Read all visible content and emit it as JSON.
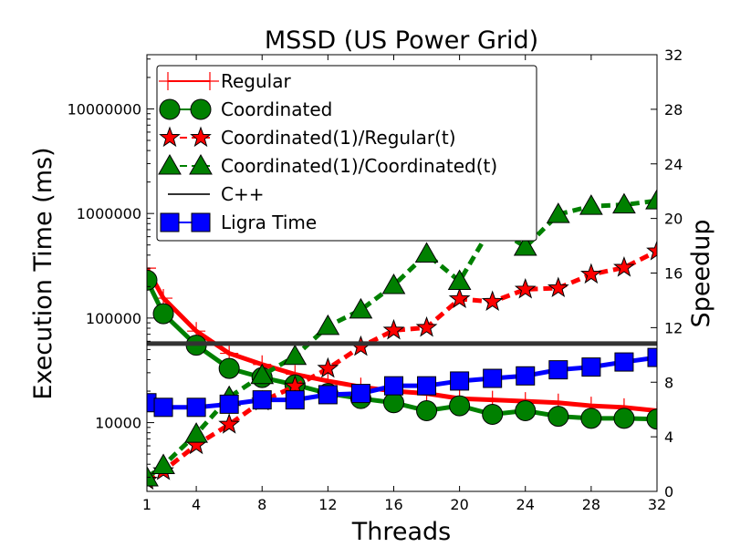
{
  "chart_data": {
    "type": "line",
    "title": "MSSD (US Power Grid)",
    "xlabel": "Threads",
    "ylabel_left": "Execution Time (ms)",
    "ylabel_right": "Speedup",
    "x_ticks": [
      1,
      4,
      8,
      12,
      16,
      20,
      24,
      28,
      32
    ],
    "x_range": [
      1,
      32
    ],
    "y_left_scale": "log",
    "y_left_range": [
      2200,
      33000000
    ],
    "y_left_ticks": [
      10000,
      100000,
      1000000,
      10000000
    ],
    "y_left_tick_labels": [
      "10000",
      "100000",
      "1000000",
      "10000000"
    ],
    "y_right_range": [
      0,
      32
    ],
    "y_right_ticks": [
      0,
      4,
      8,
      12,
      16,
      20,
      24,
      28,
      32
    ],
    "legend_position": "top-left",
    "series": [
      {
        "name": "Regular",
        "axis": "left",
        "color": "#ff0000",
        "marker": "plus",
        "dash": "solid",
        "x": [
          1,
          2,
          4,
          6,
          8,
          10,
          12,
          14,
          16,
          18,
          20,
          22,
          24,
          26,
          28,
          30,
          32
        ],
        "y": [
          300000,
          155000,
          75000,
          46000,
          36000,
          29000,
          25000,
          22000,
          20000,
          19000,
          17000,
          16500,
          16000,
          15500,
          14500,
          14000,
          13000
        ]
      },
      {
        "name": "Coordinated",
        "axis": "left",
        "color": "#008000",
        "marker": "circle",
        "dash": "solid",
        "x": [
          1,
          2,
          4,
          6,
          8,
          10,
          12,
          14,
          16,
          18,
          20,
          22,
          24,
          26,
          28,
          30,
          32
        ],
        "y": [
          230000,
          110000,
          55000,
          33000,
          27000,
          23000,
          19000,
          17000,
          15500,
          13000,
          14500,
          12000,
          13000,
          11500,
          11000,
          11000,
          10800
        ]
      },
      {
        "name": "Coordinated(1)/Regular(t)",
        "axis": "right",
        "color": "#ff0000",
        "marker": "star",
        "dash": "dashed",
        "x": [
          1,
          2,
          4,
          6,
          8,
          10,
          12,
          14,
          16,
          18,
          20,
          22,
          24,
          26,
          28,
          30,
          32
        ],
        "y": [
          0.8,
          1.5,
          3.4,
          4.9,
          6.6,
          7.7,
          9.0,
          10.6,
          11.8,
          12.0,
          14.1,
          13.9,
          14.8,
          14.9,
          15.9,
          16.4,
          17.6
        ]
      },
      {
        "name": "Coordinated(1)/Coordinated(t)",
        "axis": "right",
        "color": "#008000",
        "marker": "triangle",
        "dash": "dashed",
        "x": [
          1,
          2,
          4,
          6,
          8,
          10,
          12,
          14,
          16,
          18,
          20,
          22,
          24,
          26,
          28,
          30,
          32
        ],
        "y": [
          1.0,
          1.9,
          4.2,
          6.9,
          8.5,
          9.9,
          12.1,
          13.3,
          15.1,
          17.4,
          15.4,
          19.5,
          17.9,
          20.3,
          20.9,
          21.0,
          21.3
        ]
      },
      {
        "name": "C++",
        "axis": "left",
        "color": "#333333",
        "marker": "none",
        "dash": "solid",
        "x": [
          1,
          32
        ],
        "y": [
          57000,
          57000
        ]
      },
      {
        "name": "Ligra Time",
        "axis": "left",
        "color": "#0000ff",
        "marker": "square",
        "dash": "solid",
        "x": [
          1,
          2,
          4,
          6,
          8,
          10,
          12,
          14,
          16,
          18,
          20,
          22,
          24,
          26,
          28,
          30,
          32
        ],
        "y": [
          15500,
          14000,
          14000,
          15000,
          16500,
          16500,
          18500,
          19000,
          22500,
          22500,
          25000,
          26500,
          28000,
          32000,
          34000,
          38000,
          42000
        ]
      }
    ]
  }
}
